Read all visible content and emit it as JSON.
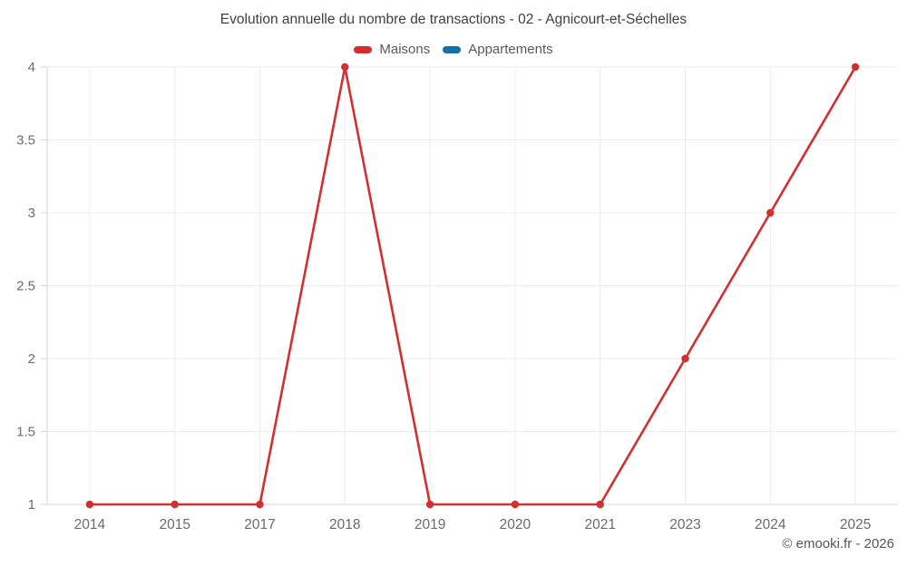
{
  "chart_data": {
    "type": "line",
    "title": "Evolution annuelle du nombre de transactions - 02 - Agnicourt-et-Séchelles",
    "categories": [
      "2014",
      "2015",
      "2017",
      "2018",
      "2019",
      "2020",
      "2021",
      "2023",
      "2024",
      "2025"
    ],
    "series": [
      {
        "name": "Maisons",
        "color": "#d32f2f",
        "values": [
          1,
          1,
          1,
          4,
          1,
          1,
          1,
          2,
          3,
          4
        ]
      },
      {
        "name": "Appartements",
        "color": "#1072a6",
        "values": [
          null,
          null,
          null,
          null,
          null,
          null,
          null,
          null,
          null,
          null
        ]
      }
    ],
    "xlabel": "",
    "ylabel": "",
    "ylim": [
      1,
      4
    ],
    "y_ticks": [
      1,
      1.5,
      2,
      2.5,
      3,
      3.5,
      4
    ],
    "grid": true,
    "legend_position": "top",
    "footer": "© emooki.fr - 2026",
    "colors": {
      "grid": "#ececec",
      "axis": "#d6d6d6",
      "tick_label": "#6b6b6b",
      "title_text": "#3f3f3f",
      "legend_text": "#595959",
      "footer_text": "#555555",
      "background": "#ffffff"
    }
  }
}
